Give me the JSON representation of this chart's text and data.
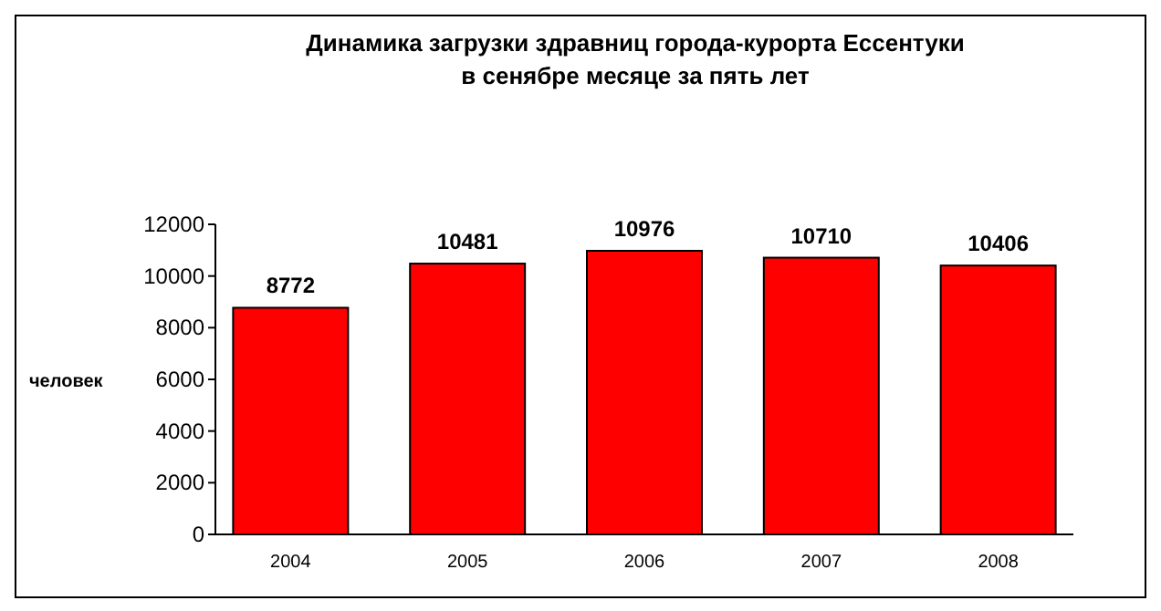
{
  "chart_data": {
    "type": "bar",
    "title": "Динамика загрузки здравниц города-курорта Ессентуки\nв сенябре месяце за пять лет",
    "ylabel": "человек",
    "categories": [
      "2004",
      "2005",
      "2006",
      "2007",
      "2008"
    ],
    "values": [
      8772,
      10481,
      10976,
      10710,
      10406
    ],
    "color": "#ff0000",
    "ylim": [
      0,
      12000
    ],
    "yticks": [
      0,
      2000,
      4000,
      6000,
      8000,
      10000,
      12000
    ],
    "data_labels": true,
    "grid": false
  }
}
